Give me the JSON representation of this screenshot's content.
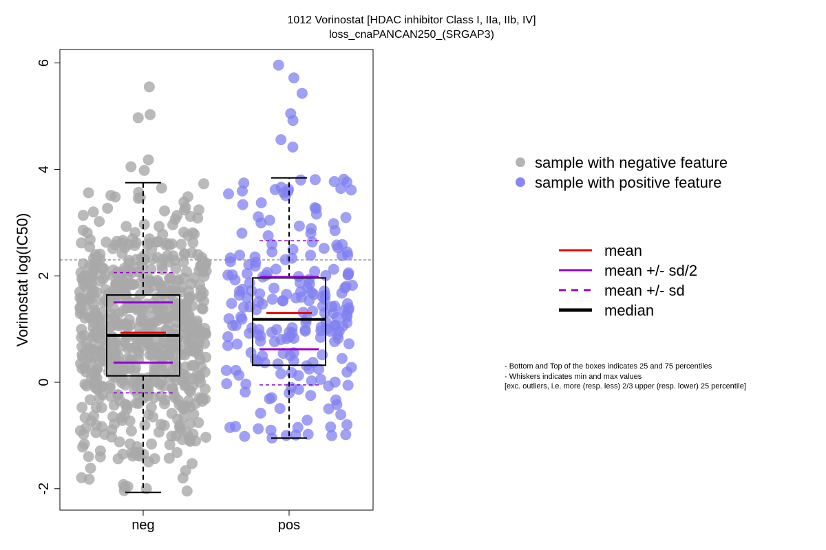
{
  "chart_data": {
    "type": "scatter",
    "title": [
      "1012 Vorinostat [HDAC inhibitor Class I, IIa, IIb, IV]",
      "loss_cnaPANCAN250_(SRGAP3)"
    ],
    "ylabel": "Vorinostat log(IC50)",
    "categories": [
      "neg",
      "pos"
    ],
    "yticks": [
      "-2",
      "0",
      "2",
      "4",
      "6"
    ],
    "ylim": [
      -2.35,
      6.3
    ],
    "reference_line": 2.3,
    "groups": [
      {
        "name": "neg",
        "color": "#a9a9a9",
        "n_points": 700,
        "stats": {
          "median": 0.88,
          "mean": 0.93,
          "q1": 0.12,
          "q3": 1.64,
          "whisker_low": -2.07,
          "whisker_high": 3.75,
          "mean_minus_half_sd": 0.37,
          "mean_plus_half_sd": 1.5,
          "mean_minus_sd": -0.2,
          "mean_plus_sd": 2.06
        },
        "outliers": [
          5.55,
          5.03,
          4.97,
          4.18,
          4.05,
          3.98
        ]
      },
      {
        "name": "pos",
        "color": "#8080f0",
        "n_points": 220,
        "stats": {
          "median": 1.18,
          "mean": 1.3,
          "q1": 0.32,
          "q3": 1.96,
          "whisker_low": -1.05,
          "whisker_high": 3.84,
          "mean_minus_half_sd": 0.62,
          "mean_plus_half_sd": 1.98,
          "mean_minus_sd": -0.05,
          "mean_plus_sd": 2.66
        },
        "outliers": [
          5.96,
          5.72,
          5.43,
          5.05,
          4.92,
          4.56,
          4.42
        ]
      }
    ],
    "legend_points": [
      {
        "label": "sample with negative feature",
        "color": "#b4b4b4"
      },
      {
        "label": "sample with positive feature",
        "color": "#8888f4"
      }
    ],
    "legend_lines": [
      {
        "label": "mean",
        "color": "#ee0000",
        "dash": false,
        "width": 3
      },
      {
        "label": "mean +/- sd/2",
        "color": "#9400d3",
        "dash": false,
        "width": 3
      },
      {
        "label": "mean +/- sd",
        "color": "#9400d3",
        "dash": true,
        "width": 3
      },
      {
        "label": "median",
        "color": "#000000",
        "dash": false,
        "width": 5
      }
    ],
    "notes": [
      "- Bottom and Top of the boxes indicates 25 and 75 percentiles",
      "- Whiskers indicates min and max values",
      "[exc. outliers, i.e. more (resp. less) 2/3 upper (resp. lower) 25 percentile]"
    ]
  }
}
